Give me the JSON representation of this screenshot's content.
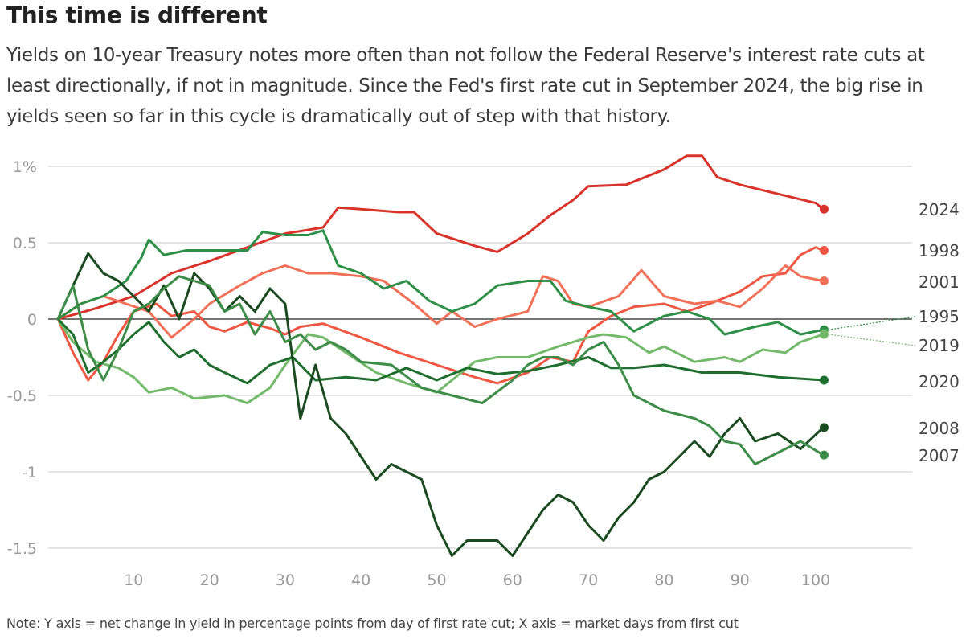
{
  "title": "This time is different",
  "subtitle": "Yields on 10-year Treasury notes more often than not follow the Federal Reserve's interest rate cuts at least directionally, if not in magnitude. Since the Fed's first rate cut in September 2024, the big rise in yields seen so far in this cycle is dramatically out of step with that history.",
  "note": "Note: Y axis = net change in yield in percentage points from day of first rate cut; X axis = market days from first cut",
  "colors": {
    "grid": "#c8c8c8",
    "zero_line": "#222222",
    "tick_text": "#9a9a9a"
  },
  "chart_data": {
    "type": "line",
    "title": "This time is different",
    "xlabel": "",
    "ylabel": "",
    "xlim": [
      0,
      101
    ],
    "ylim": [
      -1.55,
      1.05
    ],
    "x_ticks": [
      10,
      20,
      30,
      40,
      50,
      60,
      70,
      80,
      90,
      100
    ],
    "x_tick_labels": [
      "10",
      "20",
      "30",
      "40",
      "50",
      "60",
      "70",
      "80",
      "90",
      "100"
    ],
    "y_ticks": [
      1,
      0.5,
      0,
      -0.5,
      -1,
      -1.5
    ],
    "y_tick_labels": [
      "1%",
      "0.5",
      "0",
      "-0.5",
      "-1",
      "-1.5"
    ],
    "grid": true,
    "legend": "direct labels at line ends",
    "series": [
      {
        "name": "2024",
        "color": "#d9342b",
        "end_value": 0.72,
        "points": [
          [
            0,
            0
          ],
          [
            5,
            0.07
          ],
          [
            10,
            0.15
          ],
          [
            15,
            0.3
          ],
          [
            20,
            0.38
          ],
          [
            25,
            0.47
          ],
          [
            30,
            0.56
          ],
          [
            35,
            0.6
          ],
          [
            37,
            0.73
          ],
          [
            40,
            0.72
          ],
          [
            45,
            0.7
          ],
          [
            47,
            0.7
          ],
          [
            50,
            0.56
          ],
          [
            55,
            0.48
          ],
          [
            58,
            0.44
          ],
          [
            62,
            0.56
          ],
          [
            65,
            0.68
          ],
          [
            68,
            0.78
          ],
          [
            70,
            0.87
          ],
          [
            75,
            0.88
          ],
          [
            80,
            0.98
          ],
          [
            83,
            1.07
          ],
          [
            85,
            1.07
          ],
          [
            87,
            0.93
          ],
          [
            90,
            0.88
          ],
          [
            95,
            0.82
          ],
          [
            100,
            0.76
          ],
          [
            101,
            0.72
          ]
        ]
      },
      {
        "name": "1998",
        "color": "#ee5843",
        "end_value": 0.45,
        "points": [
          [
            0,
            0
          ],
          [
            2,
            -0.22
          ],
          [
            4,
            -0.4
          ],
          [
            6,
            -0.28
          ],
          [
            8,
            -0.1
          ],
          [
            10,
            0.05
          ],
          [
            13,
            0.1
          ],
          [
            15,
            0.02
          ],
          [
            18,
            0.05
          ],
          [
            20,
            -0.05
          ],
          [
            22,
            -0.08
          ],
          [
            25,
            -0.02
          ],
          [
            28,
            -0.06
          ],
          [
            30,
            -0.1
          ],
          [
            32,
            -0.05
          ],
          [
            35,
            -0.03
          ],
          [
            40,
            -0.12
          ],
          [
            45,
            -0.22
          ],
          [
            50,
            -0.3
          ],
          [
            55,
            -0.38
          ],
          [
            58,
            -0.42
          ],
          [
            62,
            -0.35
          ],
          [
            65,
            -0.25
          ],
          [
            68,
            -0.28
          ],
          [
            70,
            -0.08
          ],
          [
            73,
            0.02
          ],
          [
            76,
            0.08
          ],
          [
            80,
            0.1
          ],
          [
            83,
            0.05
          ],
          [
            86,
            0.1
          ],
          [
            90,
            0.18
          ],
          [
            93,
            0.28
          ],
          [
            96,
            0.3
          ],
          [
            98,
            0.42
          ],
          [
            100,
            0.47
          ],
          [
            101,
            0.45
          ]
        ]
      },
      {
        "name": "2001",
        "color": "#f07058",
        "end_value": 0.25,
        "points": [
          [
            0,
            0
          ],
          [
            3,
            0.1
          ],
          [
            6,
            0.15
          ],
          [
            9,
            0.1
          ],
          [
            12,
            0.05
          ],
          [
            15,
            -0.12
          ],
          [
            18,
            0.0
          ],
          [
            20,
            0.1
          ],
          [
            24,
            0.22
          ],
          [
            27,
            0.3
          ],
          [
            30,
            0.35
          ],
          [
            33,
            0.3
          ],
          [
            36,
            0.3
          ],
          [
            40,
            0.28
          ],
          [
            43,
            0.25
          ],
          [
            47,
            0.1
          ],
          [
            50,
            -0.03
          ],
          [
            52,
            0.05
          ],
          [
            55,
            -0.05
          ],
          [
            58,
            0.0
          ],
          [
            62,
            0.05
          ],
          [
            64,
            0.28
          ],
          [
            66,
            0.25
          ],
          [
            68,
            0.1
          ],
          [
            70,
            0.08
          ],
          [
            74,
            0.15
          ],
          [
            77,
            0.32
          ],
          [
            80,
            0.15
          ],
          [
            84,
            0.1
          ],
          [
            87,
            0.12
          ],
          [
            90,
            0.08
          ],
          [
            93,
            0.2
          ],
          [
            96,
            0.35
          ],
          [
            98,
            0.28
          ],
          [
            101,
            0.25
          ]
        ]
      },
      {
        "name": "1995",
        "color": "#2e8f46",
        "end_value": -0.07,
        "points": [
          [
            0,
            0
          ],
          [
            3,
            0.1
          ],
          [
            6,
            0.15
          ],
          [
            9,
            0.25
          ],
          [
            11,
            0.4
          ],
          [
            12,
            0.52
          ],
          [
            14,
            0.42
          ],
          [
            17,
            0.45
          ],
          [
            20,
            0.45
          ],
          [
            25,
            0.45
          ],
          [
            27,
            0.57
          ],
          [
            30,
            0.55
          ],
          [
            33,
            0.55
          ],
          [
            35,
            0.58
          ],
          [
            37,
            0.35
          ],
          [
            40,
            0.3
          ],
          [
            43,
            0.2
          ],
          [
            46,
            0.25
          ],
          [
            49,
            0.12
          ],
          [
            52,
            0.05
          ],
          [
            55,
            0.1
          ],
          [
            58,
            0.22
          ],
          [
            62,
            0.25
          ],
          [
            65,
            0.25
          ],
          [
            67,
            0.12
          ],
          [
            70,
            0.08
          ],
          [
            73,
            0.05
          ],
          [
            76,
            -0.08
          ],
          [
            80,
            0.02
          ],
          [
            83,
            0.05
          ],
          [
            86,
            0.0
          ],
          [
            88,
            -0.1
          ],
          [
            92,
            -0.05
          ],
          [
            95,
            -0.02
          ],
          [
            98,
            -0.1
          ],
          [
            101,
            -0.07
          ]
        ]
      },
      {
        "name": "2019",
        "color": "#73b96a",
        "end_value": -0.1,
        "points": [
          [
            0,
            0
          ],
          [
            2,
            -0.15
          ],
          [
            5,
            -0.28
          ],
          [
            8,
            -0.32
          ],
          [
            10,
            -0.38
          ],
          [
            12,
            -0.48
          ],
          [
            15,
            -0.45
          ],
          [
            18,
            -0.52
          ],
          [
            22,
            -0.5
          ],
          [
            25,
            -0.55
          ],
          [
            28,
            -0.45
          ],
          [
            30,
            -0.3
          ],
          [
            33,
            -0.1
          ],
          [
            35,
            -0.12
          ],
          [
            38,
            -0.22
          ],
          [
            42,
            -0.35
          ],
          [
            46,
            -0.42
          ],
          [
            50,
            -0.48
          ],
          [
            52,
            -0.4
          ],
          [
            55,
            -0.28
          ],
          [
            58,
            -0.25
          ],
          [
            62,
            -0.25
          ],
          [
            66,
            -0.18
          ],
          [
            70,
            -0.12
          ],
          [
            72,
            -0.1
          ],
          [
            75,
            -0.12
          ],
          [
            78,
            -0.22
          ],
          [
            80,
            -0.18
          ],
          [
            84,
            -0.28
          ],
          [
            88,
            -0.25
          ],
          [
            90,
            -0.28
          ],
          [
            93,
            -0.2
          ],
          [
            96,
            -0.22
          ],
          [
            98,
            -0.15
          ],
          [
            101,
            -0.1
          ]
        ]
      },
      {
        "name": "2020",
        "color": "#1e6e2e",
        "end_value": -0.4,
        "points": [
          [
            0,
            0
          ],
          [
            2,
            -0.1
          ],
          [
            4,
            -0.35
          ],
          [
            6,
            -0.28
          ],
          [
            8,
            -0.2
          ],
          [
            10,
            -0.1
          ],
          [
            12,
            -0.02
          ],
          [
            14,
            -0.15
          ],
          [
            16,
            -0.25
          ],
          [
            18,
            -0.2
          ],
          [
            20,
            -0.3
          ],
          [
            22,
            -0.35
          ],
          [
            25,
            -0.42
          ],
          [
            28,
            -0.3
          ],
          [
            31,
            -0.25
          ],
          [
            34,
            -0.4
          ],
          [
            38,
            -0.38
          ],
          [
            42,
            -0.4
          ],
          [
            46,
            -0.32
          ],
          [
            50,
            -0.4
          ],
          [
            54,
            -0.32
          ],
          [
            58,
            -0.36
          ],
          [
            62,
            -0.34
          ],
          [
            66,
            -0.3
          ],
          [
            70,
            -0.25
          ],
          [
            73,
            -0.32
          ],
          [
            76,
            -0.32
          ],
          [
            80,
            -0.3
          ],
          [
            85,
            -0.35
          ],
          [
            90,
            -0.35
          ],
          [
            95,
            -0.38
          ],
          [
            101,
            -0.4
          ]
        ]
      },
      {
        "name": "2008",
        "color": "#1a4a1f",
        "end_value": -0.71,
        "points": [
          [
            0,
            0
          ],
          [
            2,
            0.22
          ],
          [
            4,
            0.43
          ],
          [
            6,
            0.3
          ],
          [
            8,
            0.25
          ],
          [
            10,
            0.15
          ],
          [
            12,
            0.05
          ],
          [
            14,
            0.22
          ],
          [
            16,
            0.0
          ],
          [
            18,
            0.3
          ],
          [
            20,
            0.2
          ],
          [
            22,
            0.05
          ],
          [
            24,
            0.15
          ],
          [
            26,
            0.05
          ],
          [
            28,
            0.2
          ],
          [
            30,
            0.1
          ],
          [
            32,
            -0.65
          ],
          [
            34,
            -0.3
          ],
          [
            36,
            -0.65
          ],
          [
            38,
            -0.75
          ],
          [
            40,
            -0.9
          ],
          [
            42,
            -1.05
          ],
          [
            44,
            -0.95
          ],
          [
            46,
            -1.0
          ],
          [
            48,
            -1.05
          ],
          [
            50,
            -1.35
          ],
          [
            52,
            -1.55
          ],
          [
            54,
            -1.45
          ],
          [
            58,
            -1.45
          ],
          [
            60,
            -1.55
          ],
          [
            62,
            -1.4
          ],
          [
            64,
            -1.25
          ],
          [
            66,
            -1.15
          ],
          [
            68,
            -1.2
          ],
          [
            70,
            -1.35
          ],
          [
            72,
            -1.45
          ],
          [
            74,
            -1.3
          ],
          [
            76,
            -1.2
          ],
          [
            78,
            -1.05
          ],
          [
            80,
            -1.0
          ],
          [
            82,
            -0.9
          ],
          [
            84,
            -0.8
          ],
          [
            86,
            -0.9
          ],
          [
            88,
            -0.75
          ],
          [
            90,
            -0.65
          ],
          [
            92,
            -0.8
          ],
          [
            95,
            -0.75
          ],
          [
            98,
            -0.85
          ],
          [
            101,
            -0.71
          ]
        ]
      },
      {
        "name": "2007",
        "color": "#3d8c47",
        "end_value": -0.89,
        "points": [
          [
            0,
            0
          ],
          [
            2,
            0.22
          ],
          [
            4,
            -0.2
          ],
          [
            6,
            -0.4
          ],
          [
            8,
            -0.2
          ],
          [
            10,
            0.05
          ],
          [
            12,
            0.1
          ],
          [
            14,
            0.2
          ],
          [
            16,
            0.28
          ],
          [
            18,
            0.25
          ],
          [
            20,
            0.22
          ],
          [
            22,
            0.05
          ],
          [
            24,
            0.1
          ],
          [
            26,
            -0.1
          ],
          [
            28,
            0.05
          ],
          [
            30,
            -0.15
          ],
          [
            32,
            -0.1
          ],
          [
            34,
            -0.2
          ],
          [
            36,
            -0.15
          ],
          [
            38,
            -0.2
          ],
          [
            40,
            -0.28
          ],
          [
            44,
            -0.3
          ],
          [
            48,
            -0.45
          ],
          [
            52,
            -0.5
          ],
          [
            56,
            -0.55
          ],
          [
            60,
            -0.4
          ],
          [
            62,
            -0.3
          ],
          [
            64,
            -0.25
          ],
          [
            66,
            -0.25
          ],
          [
            68,
            -0.3
          ],
          [
            70,
            -0.2
          ],
          [
            72,
            -0.15
          ],
          [
            74,
            -0.3
          ],
          [
            76,
            -0.5
          ],
          [
            80,
            -0.6
          ],
          [
            84,
            -0.65
          ],
          [
            86,
            -0.7
          ],
          [
            88,
            -0.8
          ],
          [
            90,
            -0.82
          ],
          [
            92,
            -0.95
          ],
          [
            94,
            -0.9
          ],
          [
            96,
            -0.85
          ],
          [
            98,
            -0.8
          ],
          [
            101,
            -0.89
          ]
        ]
      }
    ]
  }
}
